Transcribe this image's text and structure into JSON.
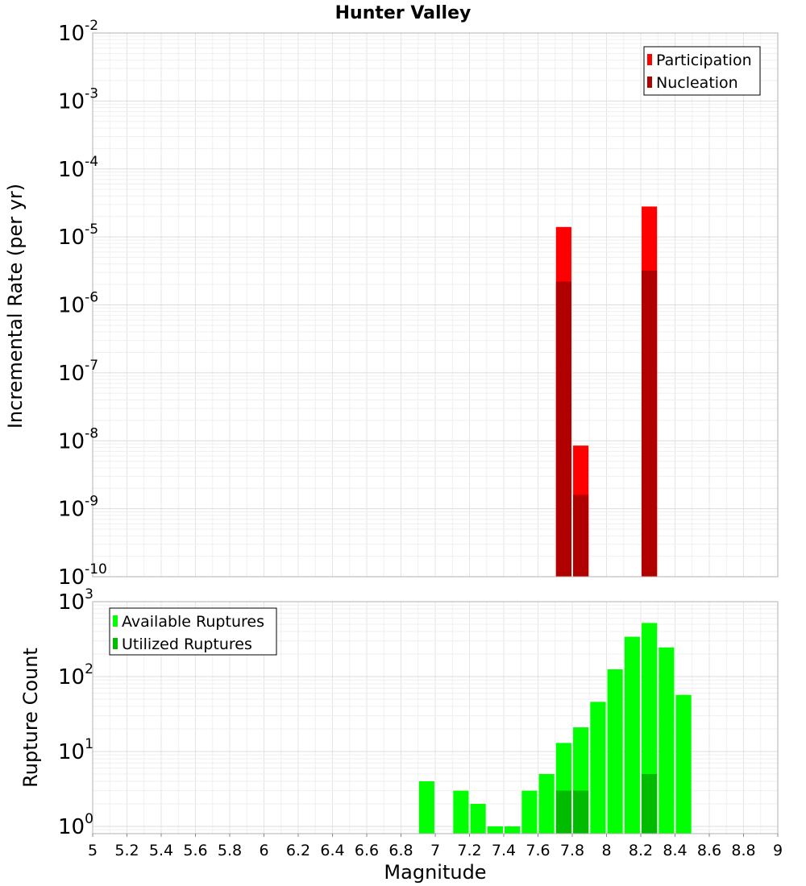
{
  "chart_data": [
    {
      "type": "bar",
      "title": "Hunter Valley",
      "xlabel": "",
      "ylabel": "Incremental Rate (per yr)",
      "yscale": "log",
      "ylim": [
        1e-10,
        0.01
      ],
      "xlim": [
        5,
        9
      ],
      "grid": true,
      "legend_position": "top-right",
      "y_tick_labels": [
        {
          "base": "10",
          "exp": "-10"
        },
        {
          "base": "10",
          "exp": "-9"
        },
        {
          "base": "10",
          "exp": "-8"
        },
        {
          "base": "10",
          "exp": "-7"
        },
        {
          "base": "10",
          "exp": "-6"
        },
        {
          "base": "10",
          "exp": "-5"
        },
        {
          "base": "10",
          "exp": "-4"
        },
        {
          "base": "10",
          "exp": "-3"
        },
        {
          "base": "10",
          "exp": "-2"
        }
      ],
      "bar_width": 0.09,
      "series": [
        {
          "name": "Participation",
          "color": "#ff0000",
          "points": [
            {
              "x": 7.75,
              "y": 1.4e-05
            },
            {
              "x": 7.85,
              "y": 8.5e-09
            },
            {
              "x": 8.25,
              "y": 2.8e-05
            }
          ]
        },
        {
          "name": "Nucleation",
          "color": "#b00000",
          "points": [
            {
              "x": 7.75,
              "y": 2.2e-06
            },
            {
              "x": 7.85,
              "y": 1.6e-09
            },
            {
              "x": 8.25,
              "y": 3.2e-06
            }
          ]
        }
      ]
    },
    {
      "type": "bar",
      "title": "",
      "xlabel": "Magnitude",
      "ylabel": "Rupture Count",
      "yscale": "log",
      "ylim": [
        0.8,
        1000
      ],
      "xlim": [
        5,
        9
      ],
      "grid": true,
      "legend_position": "top-left",
      "y_tick_labels": [
        {
          "base": "10",
          "exp": "0"
        },
        {
          "base": "10",
          "exp": "1"
        },
        {
          "base": "10",
          "exp": "2"
        },
        {
          "base": "10",
          "exp": "3"
        }
      ],
      "x_tick_labels": [
        "5",
        "5.2",
        "5.4",
        "5.6",
        "5.8",
        "6",
        "6.2",
        "6.4",
        "6.6",
        "6.8",
        "7",
        "7.2",
        "7.4",
        "7.6",
        "7.8",
        "8",
        "8.2",
        "8.4",
        "8.6",
        "8.8",
        "9"
      ],
      "bar_width": 0.09,
      "series": [
        {
          "name": "Available Ruptures",
          "color": "#00ff00",
          "points": [
            {
              "x": 6.95,
              "y": 4
            },
            {
              "x": 7.15,
              "y": 3
            },
            {
              "x": 7.25,
              "y": 2
            },
            {
              "x": 7.35,
              "y": 1
            },
            {
              "x": 7.45,
              "y": 1
            },
            {
              "x": 7.55,
              "y": 3
            },
            {
              "x": 7.65,
              "y": 5
            },
            {
              "x": 7.75,
              "y": 13
            },
            {
              "x": 7.85,
              "y": 21
            },
            {
              "x": 7.95,
              "y": 46
            },
            {
              "x": 8.05,
              "y": 125
            },
            {
              "x": 8.15,
              "y": 340
            },
            {
              "x": 8.25,
              "y": 520
            },
            {
              "x": 8.35,
              "y": 245
            },
            {
              "x": 8.45,
              "y": 57
            }
          ]
        },
        {
          "name": "Utilized Ruptures",
          "color": "#00bb00",
          "points": [
            {
              "x": 7.75,
              "y": 3
            },
            {
              "x": 7.85,
              "y": 3
            },
            {
              "x": 8.25,
              "y": 5
            }
          ]
        }
      ]
    }
  ]
}
